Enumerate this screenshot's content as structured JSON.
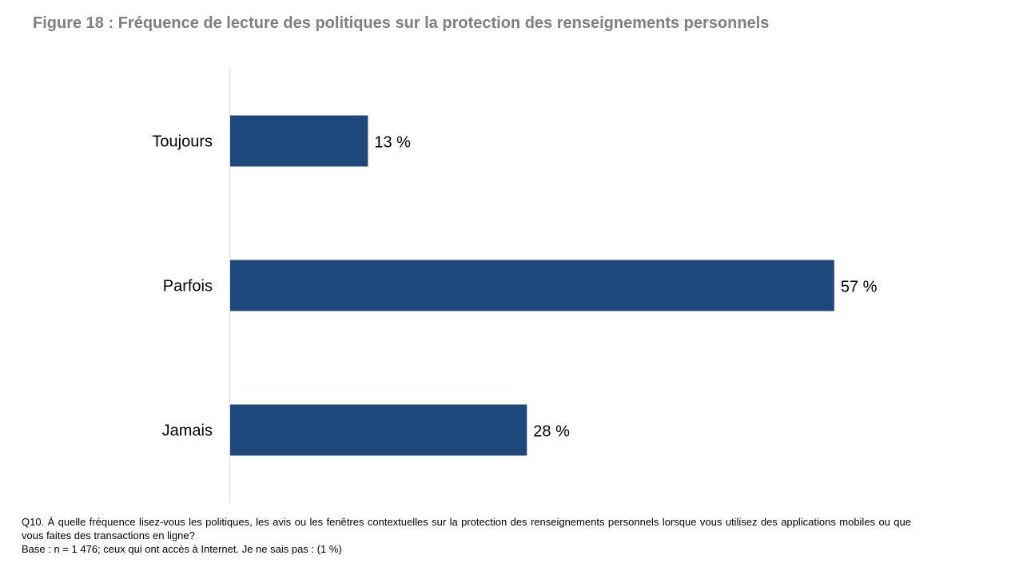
{
  "title": "Figure 18 : Fréquence de lecture des politiques sur la protection des renseignements personnels",
  "chart_data": {
    "type": "bar",
    "orientation": "horizontal",
    "categories": [
      "Toujours",
      "Parfois",
      "Jamais"
    ],
    "values": [
      13,
      57,
      28
    ],
    "value_labels": [
      "13 %",
      "57 %",
      "28 %"
    ],
    "xlim": [
      0,
      70
    ],
    "grid": false,
    "bar_color": "#1F497D"
  },
  "footnote": {
    "question": "Q10. À quelle fréquence lisez-vous les politiques, les avis ou les fenêtres contextuelles sur la protection des renseignements personnels lorsque vous utilisez des applications mobiles ou que vous faites des transactions en ligne?",
    "base": "Base : n = 1 476; ceux qui ont accès à Internet. Je ne sais pas : (1 %)"
  }
}
